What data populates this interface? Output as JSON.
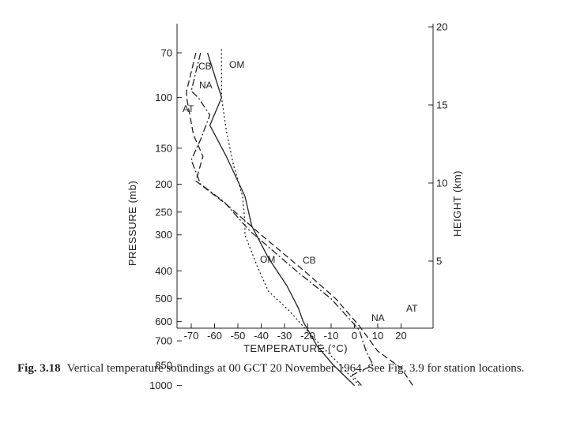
{
  "chart_data": {
    "type": "line",
    "xlabel": "TEMPERATURE (°C)",
    "ylabel": "PRESSURE (mb)",
    "y2label": "HEIGHT (km)",
    "xlim": [
      -80,
      28
    ],
    "x_ticks": [
      -70,
      -60,
      -50,
      -40,
      -30,
      -20,
      -10,
      0,
      10,
      20
    ],
    "y_ticks": [
      70,
      100,
      150,
      200,
      250,
      300,
      400,
      500,
      600,
      700,
      850,
      1000
    ],
    "y_scale": "log",
    "y2_ticks": [
      5,
      10,
      15,
      20
    ],
    "grid": false,
    "series": [
      {
        "name": "CB",
        "style": "solid",
        "points": [
          [
            -63,
            70
          ],
          [
            -57,
            100
          ],
          [
            -62,
            125
          ],
          [
            -55,
            160
          ],
          [
            -47,
            220
          ],
          [
            -44,
            280
          ],
          [
            -37,
            360
          ],
          [
            -29,
            450
          ],
          [
            -24,
            540
          ],
          [
            -22,
            600
          ],
          [
            -16,
            730
          ],
          [
            -9,
            850
          ],
          [
            0,
            1000
          ]
        ]
      },
      {
        "name": "NA",
        "style": "dash-dot",
        "points": [
          [
            -66,
            70
          ],
          [
            -70,
            95
          ],
          [
            -67,
            100
          ],
          [
            -62,
            115
          ],
          [
            -66,
            140
          ],
          [
            -70,
            165
          ],
          [
            -66,
            200
          ],
          [
            -56,
            230
          ],
          [
            -45,
            290
          ],
          [
            -25,
            400
          ],
          [
            -10,
            500
          ],
          [
            2,
            640
          ],
          [
            5,
            760
          ],
          [
            8,
            850
          ],
          [
            -1,
            920
          ],
          [
            3,
            1000
          ]
        ]
      },
      {
        "name": "AT",
        "style": "dashed",
        "points": [
          [
            -68,
            70
          ],
          [
            -72,
            95
          ],
          [
            -72,
            100
          ],
          [
            -69,
            135
          ],
          [
            -65,
            160
          ],
          [
            -68,
            195
          ],
          [
            -55,
            235
          ],
          [
            -40,
            300
          ],
          [
            -20,
            410
          ],
          [
            -8,
            500
          ],
          [
            2,
            620
          ],
          [
            10,
            760
          ],
          [
            20,
            870
          ],
          [
            25,
            1000
          ]
        ]
      },
      {
        "name": "OM",
        "style": "dotted",
        "points": [
          [
            -57,
            68
          ],
          [
            -57,
            100
          ],
          [
            -55,
            130
          ],
          [
            -52,
            170
          ],
          [
            -48,
            220
          ],
          [
            -47,
            270
          ],
          [
            -47,
            300
          ],
          [
            -42,
            380
          ],
          [
            -37,
            470
          ],
          [
            -28,
            550
          ],
          [
            -20,
            650
          ],
          [
            -12,
            760
          ],
          [
            -6,
            850
          ],
          [
            2,
            1000
          ]
        ]
      }
    ],
    "annotations": [
      "CB",
      "OM",
      "NA",
      "AT",
      "OM",
      "CB",
      "AT",
      "NA"
    ]
  },
  "caption": {
    "label": "Fig. 3.18",
    "text": "Vertical temperature soundings at 00 GCT 20 November 1964. See Fig. 3.9 for station locations."
  }
}
